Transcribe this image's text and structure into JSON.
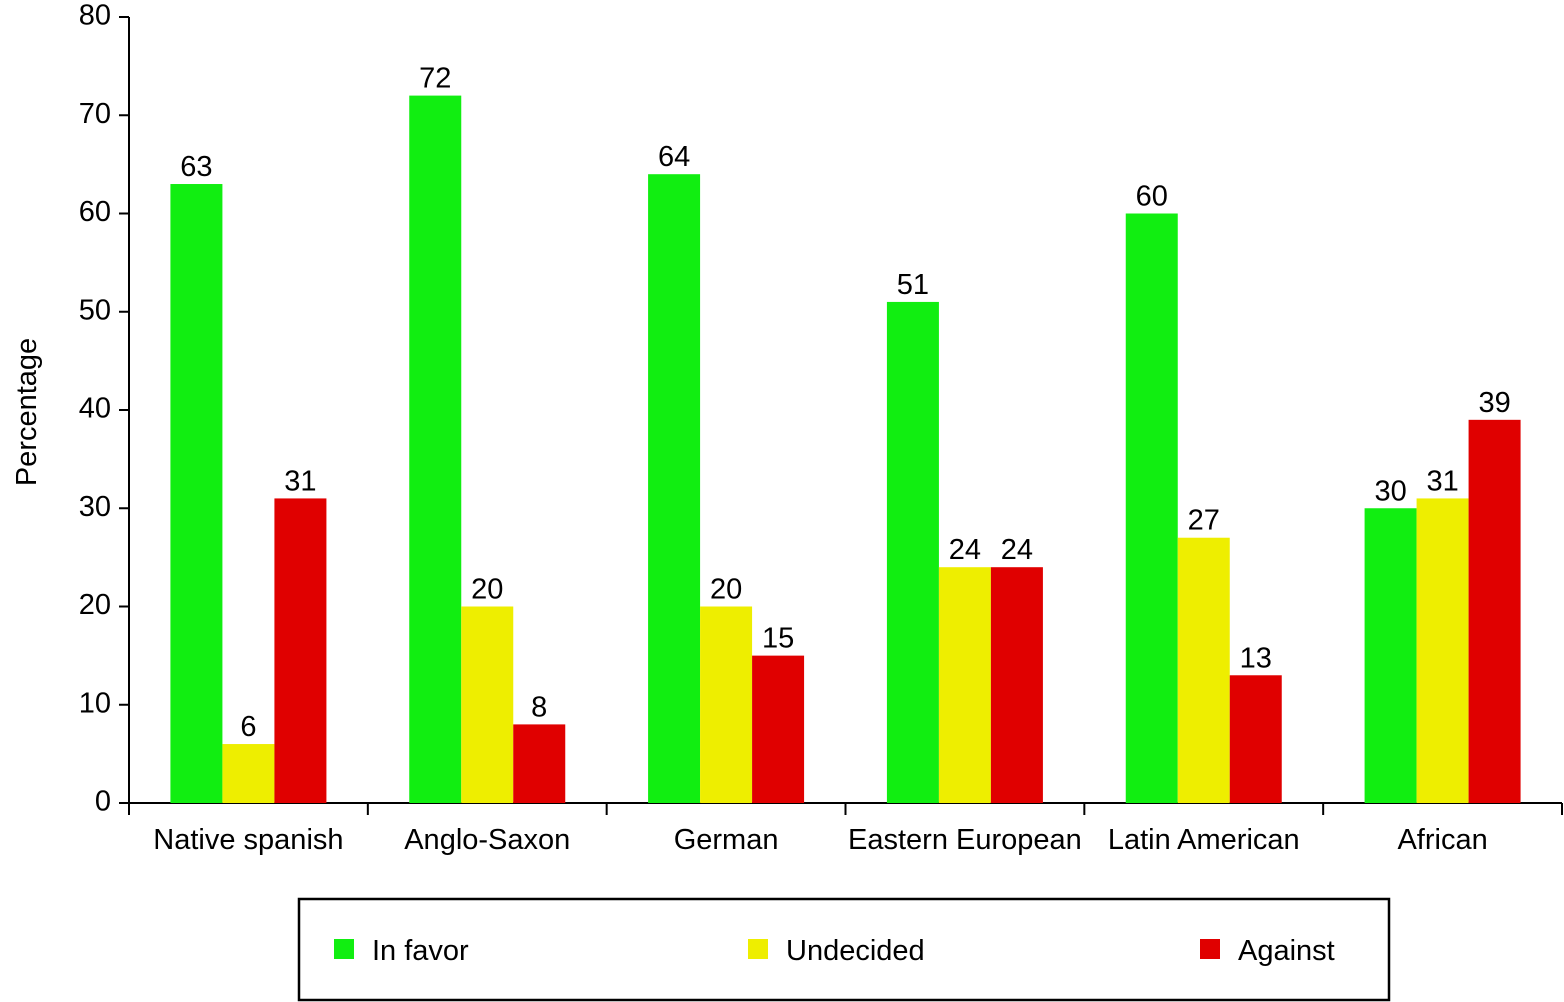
{
  "chart_data": {
    "type": "bar",
    "y_label": "Percentage",
    "categories": [
      "Native spanish",
      "Anglo-Saxon",
      "German",
      "Eastern European",
      "Latin American",
      "African"
    ],
    "series": [
      {
        "name": "In favor",
        "color": "#11ee11",
        "values": [
          63,
          72,
          64,
          51,
          60,
          30
        ]
      },
      {
        "name": "Undecided",
        "color": "#eeee00",
        "values": [
          6,
          20,
          20,
          24,
          27,
          31
        ]
      },
      {
        "name": "Against",
        "color": "#e00000",
        "values": [
          31,
          8,
          15,
          24,
          13,
          39
        ]
      }
    ],
    "ylim": [
      0,
      80
    ],
    "yticks": [
      0,
      10,
      20,
      30,
      40,
      50,
      60,
      70,
      80
    ],
    "grid": false,
    "legend": "bottom"
  }
}
